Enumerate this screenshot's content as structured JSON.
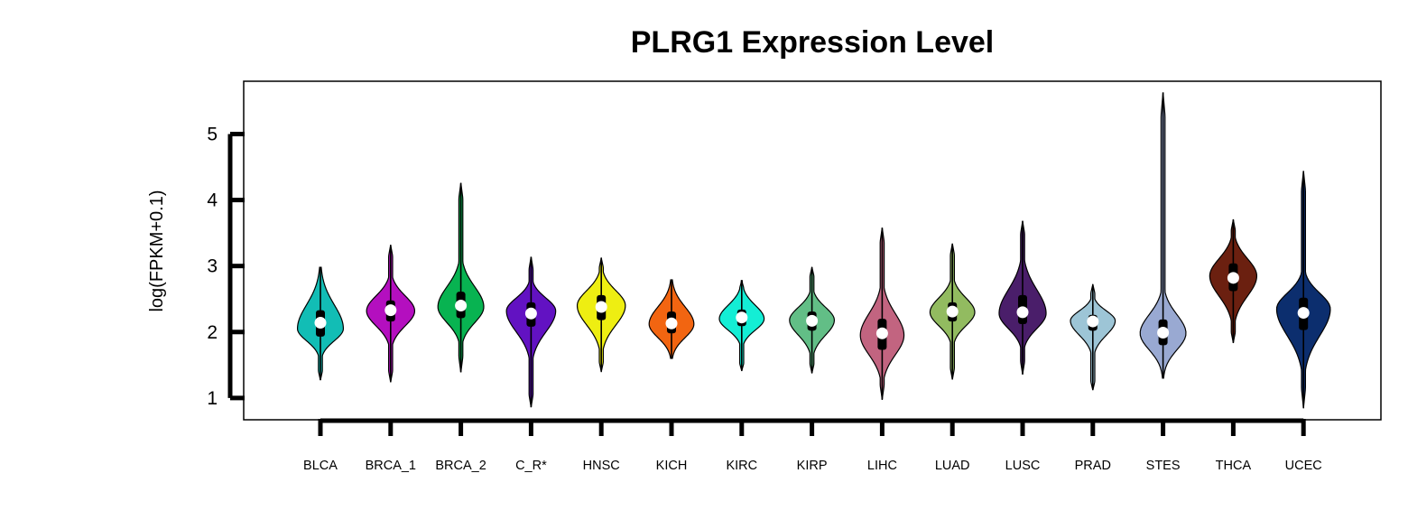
{
  "chart_data": {
    "type": "violin",
    "title": "PLRG1 Expression Level",
    "xlabel": "",
    "ylabel": "log(FPKM+0.1)",
    "yticks": [
      1,
      2,
      3,
      4,
      5
    ],
    "ylim": [
      0.67,
      5.8
    ],
    "grid": false,
    "legend": "none",
    "categories": [
      "BLCA",
      "BRCA_1",
      "BRCA_2",
      "C_R*",
      "HNSC",
      "KICH",
      "KIRC",
      "KIRP",
      "LIHC",
      "LUAD",
      "LUSC",
      "PRAD",
      "STES",
      "THCA",
      "UCEC"
    ],
    "colors": [
      "#12BDB5",
      "#B40FBF",
      "#08B351",
      "#6212C2",
      "#EEEE12",
      "#F26511",
      "#14EED5",
      "#62BE86",
      "#C26480",
      "#92BB60",
      "#4A1E6A",
      "#9DC5D6",
      "#99A9D2",
      "#6B2010",
      "#0C2E6E"
    ],
    "series": [
      {
        "min": 1.27,
        "q1": 1.93,
        "median": 2.14,
        "q3": 2.33,
        "max": 2.98,
        "mode": 2.05,
        "width": 0.82
      },
      {
        "min": 1.24,
        "q1": 2.16,
        "median": 2.33,
        "q3": 2.48,
        "max": 3.32,
        "mode": 2.32,
        "width": 0.86
      },
      {
        "min": 1.39,
        "q1": 2.21,
        "median": 2.4,
        "q3": 2.61,
        "max": 4.26,
        "mode": 2.38,
        "width": 0.82
      },
      {
        "min": 0.86,
        "q1": 2.08,
        "median": 2.28,
        "q3": 2.45,
        "max": 3.14,
        "mode": 2.32,
        "width": 0.88
      },
      {
        "min": 1.4,
        "q1": 2.18,
        "median": 2.38,
        "q3": 2.56,
        "max": 3.12,
        "mode": 2.4,
        "width": 0.86
      },
      {
        "min": 1.6,
        "q1": 1.98,
        "median": 2.13,
        "q3": 2.31,
        "max": 2.79,
        "mode": 2.12,
        "width": 0.8
      },
      {
        "min": 1.41,
        "q1": 2.09,
        "median": 2.22,
        "q3": 2.34,
        "max": 2.78,
        "mode": 2.2,
        "width": 0.8
      },
      {
        "min": 1.38,
        "q1": 2.02,
        "median": 2.17,
        "q3": 2.31,
        "max": 2.98,
        "mode": 2.18,
        "width": 0.8
      },
      {
        "min": 0.98,
        "q1": 1.73,
        "median": 1.98,
        "q3": 2.2,
        "max": 3.58,
        "mode": 1.95,
        "width": 0.78
      },
      {
        "min": 1.28,
        "q1": 2.16,
        "median": 2.31,
        "q3": 2.45,
        "max": 3.34,
        "mode": 2.3,
        "width": 0.8
      },
      {
        "min": 1.36,
        "q1": 2.12,
        "median": 2.3,
        "q3": 2.56,
        "max": 3.68,
        "mode": 2.28,
        "width": 0.84
      },
      {
        "min": 1.12,
        "q1": 2.02,
        "median": 2.16,
        "q3": 2.26,
        "max": 2.72,
        "mode": 2.17,
        "width": 0.8
      },
      {
        "min": 1.3,
        "q1": 1.8,
        "median": 1.99,
        "q3": 2.19,
        "max": 5.63,
        "mode": 1.98,
        "width": 0.82
      },
      {
        "min": 1.84,
        "q1": 2.62,
        "median": 2.82,
        "q3": 3.04,
        "max": 3.7,
        "mode": 2.85,
        "width": 0.84
      },
      {
        "min": 0.85,
        "q1": 2.03,
        "median": 2.29,
        "q3": 2.52,
        "max": 4.44,
        "mode": 2.35,
        "width": 0.96
      }
    ]
  }
}
